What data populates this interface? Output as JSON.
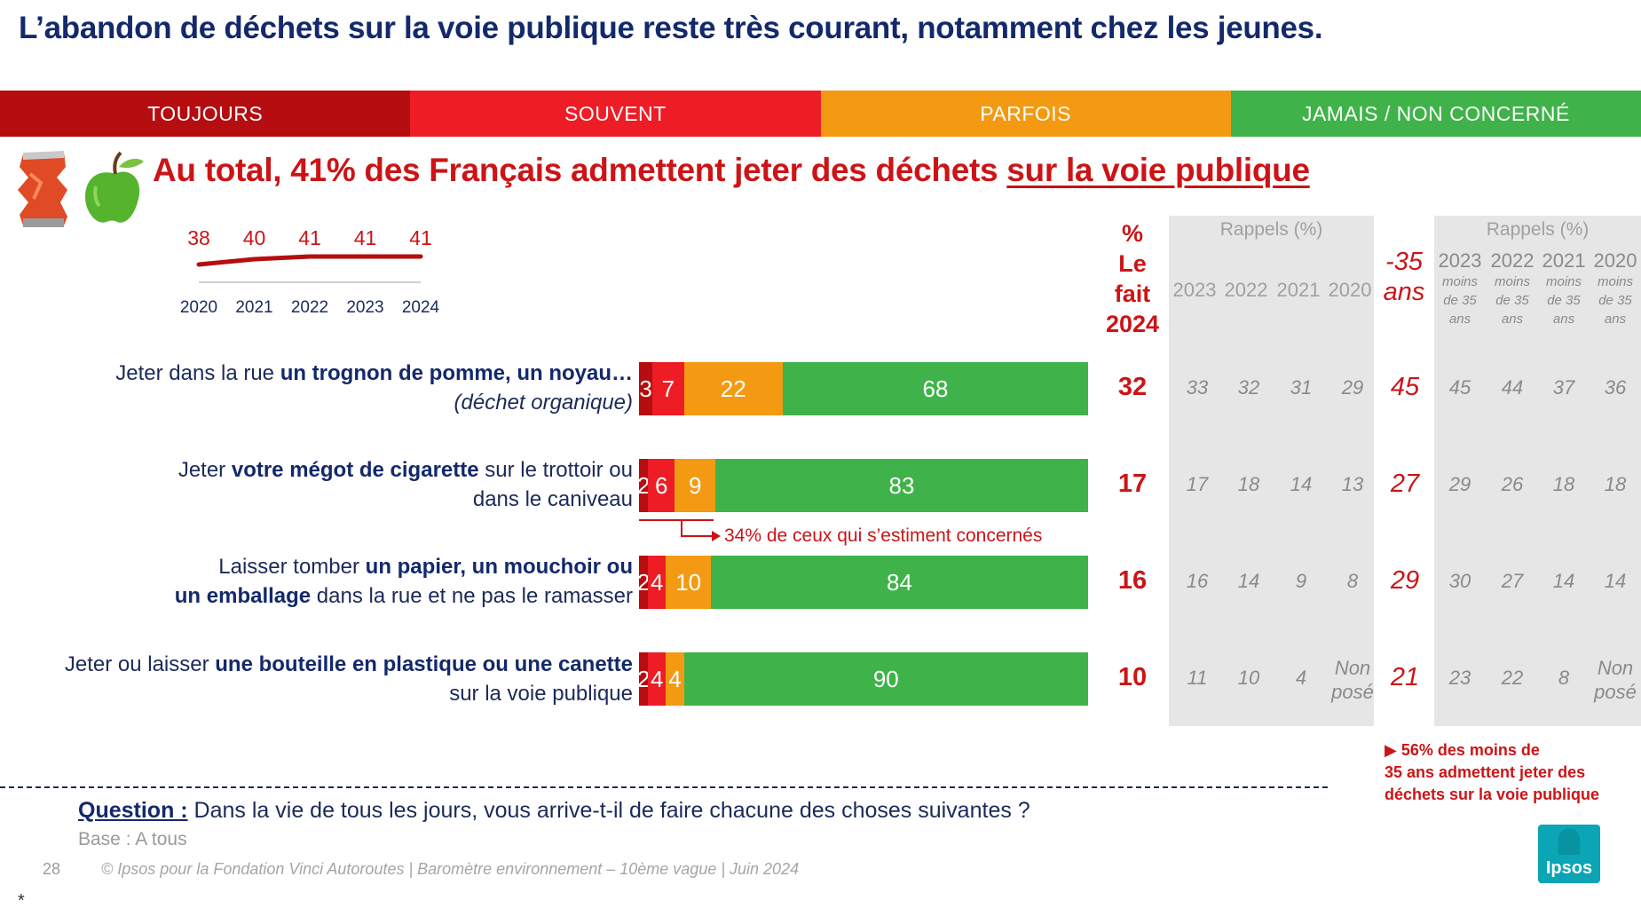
{
  "title": "L’abandon de déchets sur la voie publique reste très courant, notamment chez les jeunes.",
  "legend": [
    {
      "label": "TOUJOURS",
      "color": "#b50d10"
    },
    {
      "label": "SOUVENT",
      "color": "#ee1c24"
    },
    {
      "label": "PARFOIS",
      "color": "#f39a12"
    },
    {
      "label": "JAMAIS / NON CONCERNÉ",
      "color": "#3fb349"
    }
  ],
  "headline": {
    "main": "Au total, 41% des Français admettent jeter des déchets ",
    "underlined": "sur la voie publique"
  },
  "headers": {
    "fait_line1": "%",
    "fait_line2": "Le",
    "fait_line3": "fait",
    "fait_line4": "2024",
    "rappels": "Rappels (%)",
    "rappels_young": "Rappels (%)",
    "years": [
      "2023",
      "2022",
      "2021",
      "2020"
    ],
    "young_line1": "-35",
    "young_line2": "ans",
    "young_sub": "moins de 35 ans"
  },
  "items": [
    {
      "pre": "Jeter dans la rue ",
      "bold": "un trognon de pomme, un noyau…",
      "line2_italic": "(déchet organique)"
    },
    {
      "pre": "Jeter ",
      "bold": "votre mégot de cigarette",
      "post": " sur le trottoir ou",
      "line2": "dans le caniveau"
    },
    {
      "pre": "Laisser tomber ",
      "bold": "un papier, un mouchoir ou",
      "line2_bold": "un emballage",
      "line2": " dans la rue et ne pas le ramasser"
    },
    {
      "pre": "Jeter ou laisser ",
      "bold": "une bouteille en plastique ou une canette",
      "line2": "sur la voie publique"
    }
  ],
  "annotation_concerned": "34% de ceux qui s’estiment concernés",
  "young_note": [
    "▶ 56% des moins de",
    "35 ans  admettent jeter des",
    "déchets sur la voie publique"
  ],
  "footer": {
    "question_label": "Question :",
    "question_text": " Dans la vie de tous les jours, vous arrive-t-il de faire chacune des choses suivantes ?",
    "base": "Base : A tous",
    "page": "28",
    "source": "© Ipsos  pour la Fondation Vinci Autoroutes | Baromètre environnement – 10ème vague | Juin 2024",
    "asterisk": "*",
    "logo_text": "Ipsos",
    "logo_color": "#0ba5b5"
  },
  "chart_data": [
    {
      "type": "line",
      "title": "",
      "x": [
        "2020",
        "2021",
        "2022",
        "2023",
        "2024"
      ],
      "series": [
        {
          "values": [
            38,
            40,
            41,
            41,
            41
          ]
        }
      ],
      "color": "#b50d10"
    },
    {
      "type": "bar",
      "orientation": "horizontal-stacked",
      "unit": "%",
      "categories": [
        "Jeter dans la rue un trognon de pomme, un noyau… (déchet organique)",
        "Jeter votre mégot de cigarette sur le trottoir ou dans le caniveau",
        "Laisser tomber un papier, un mouchoir ou un emballage dans la rue et ne pas le ramasser",
        "Jeter ou laisser une bouteille en plastique ou une canette sur la voie publique"
      ],
      "series": [
        {
          "name": "TOUJOURS",
          "values": [
            3,
            2,
            2,
            2
          ],
          "color": "#b50d10"
        },
        {
          "name": "SOUVENT",
          "values": [
            7,
            6,
            4,
            4
          ],
          "color": "#ee1c24"
        },
        {
          "name": "PARFOIS",
          "values": [
            22,
            9,
            10,
            4
          ],
          "color": "#f39a12"
        },
        {
          "name": "JAMAIS / NON CONCERNÉ",
          "values": [
            68,
            83,
            84,
            90
          ],
          "color": "#3fb349"
        }
      ],
      "le_fait_2024": [
        32,
        17,
        16,
        10
      ],
      "rappels": {
        "2023": [
          "33",
          "17",
          "16",
          "11"
        ],
        "2022": [
          "32",
          "18",
          "14",
          "10"
        ],
        "2021": [
          "31",
          "14",
          "9",
          "4"
        ],
        "2020": [
          "29",
          "13",
          "8",
          "Non posé"
        ]
      },
      "moins_35_ans_2024": [
        45,
        27,
        29,
        21
      ],
      "rappels_moins_35": {
        "2023": [
          "45",
          "29",
          "30",
          "23"
        ],
        "2022": [
          "44",
          "26",
          "27",
          "22"
        ],
        "2021": [
          "37",
          "18",
          "14",
          "8"
        ],
        "2020": [
          "36",
          "18",
          "14",
          "Non posé"
        ]
      }
    }
  ]
}
